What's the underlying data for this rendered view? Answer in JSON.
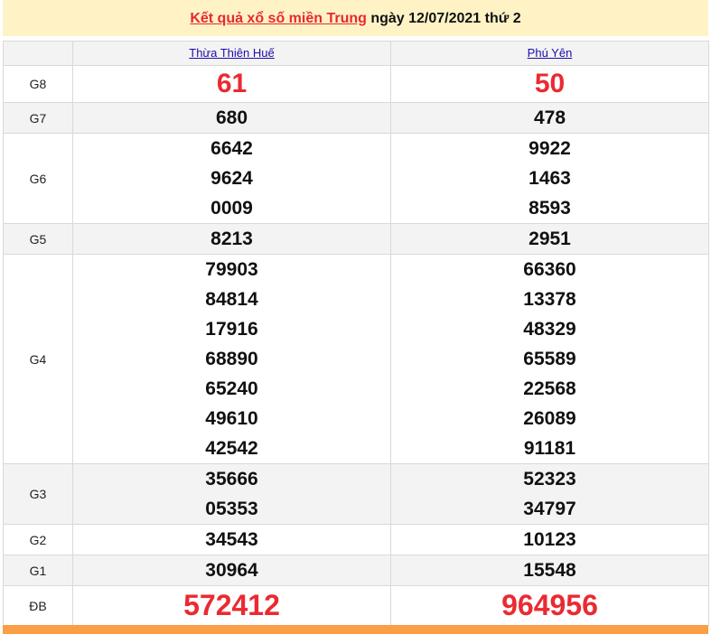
{
  "header": {
    "link_text": "Kết quả xổ số miền Trung",
    "rest_text": " ngày 12/07/2021 thứ 2"
  },
  "columns": [
    "Thừa Thiên Huế",
    "Phú Yên"
  ],
  "rows": [
    {
      "label": "G8",
      "a": [
        "61"
      ],
      "b": [
        "50"
      ],
      "style": "big"
    },
    {
      "label": "G7",
      "a": [
        "680"
      ],
      "b": [
        "478"
      ]
    },
    {
      "label": "G6",
      "a": [
        "6642",
        "9624",
        "0009"
      ],
      "b": [
        "9922",
        "1463",
        "8593"
      ]
    },
    {
      "label": "G5",
      "a": [
        "8213"
      ],
      "b": [
        "2951"
      ]
    },
    {
      "label": "G4",
      "a": [
        "79903",
        "84814",
        "17916",
        "68890",
        "65240",
        "49610",
        "42542"
      ],
      "b": [
        "66360",
        "13378",
        "48329",
        "65589",
        "22568",
        "26089",
        "91181"
      ]
    },
    {
      "label": "G3",
      "a": [
        "35666",
        "05353"
      ],
      "b": [
        "52323",
        "34797"
      ]
    },
    {
      "label": "G2",
      "a": [
        "34543"
      ],
      "b": [
        "10123"
      ]
    },
    {
      "label": "G1",
      "a": [
        "30964"
      ],
      "b": [
        "15548"
      ]
    },
    {
      "label": "ĐB",
      "a": [
        "572412"
      ],
      "b": [
        "964956"
      ],
      "style": "db"
    }
  ],
  "colors": {
    "accent_red": "#ea2a32",
    "title_bg": "#fff3c6",
    "footer_orange": "#fb9e48",
    "link_blue": "#1a0dab"
  }
}
